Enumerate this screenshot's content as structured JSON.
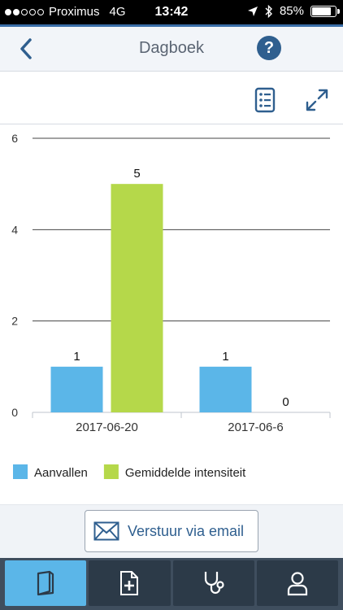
{
  "status_bar": {
    "carrier": "Proximus",
    "network": "4G",
    "time": "13:42",
    "battery_percent": "85%",
    "battery_level": 0.85,
    "signal_bars": 2
  },
  "nav": {
    "title": "Dagboek",
    "help_label": "?"
  },
  "icons": {
    "back": "chevron-left-icon",
    "list": "list-icon",
    "expand": "expand-icon",
    "email": "envelope-icon",
    "location": "location-arrow-icon",
    "bluetooth": "bluetooth-icon"
  },
  "colors": {
    "accent": "#2f5f8f",
    "series_aanvallen": "#5bb6e8",
    "series_intensiteit": "#b5d84a",
    "tab_active": "#5bb6e8"
  },
  "chart_data": {
    "type": "bar",
    "categories": [
      "2017-06-20",
      "2017-06-6"
    ],
    "series": [
      {
        "name": "Aanvallen",
        "values": [
          1,
          1
        ]
      },
      {
        "name": "Gemiddelde intensiteit",
        "values": [
          5,
          0
        ]
      }
    ],
    "ylim": [
      0,
      6
    ],
    "yticks": [
      "0",
      "2",
      "4",
      "6"
    ],
    "data_labels": [
      [
        "1",
        "1"
      ],
      [
        "5",
        "0"
      ]
    ],
    "grid": true,
    "legend": "bottom-left"
  },
  "email_button": {
    "label": "Verstuur via email"
  },
  "tabs": [
    {
      "icon": "book-icon",
      "active": true
    },
    {
      "icon": "add-document-icon",
      "active": false
    },
    {
      "icon": "stethoscope-icon",
      "active": false
    },
    {
      "icon": "user-icon",
      "active": false
    }
  ]
}
